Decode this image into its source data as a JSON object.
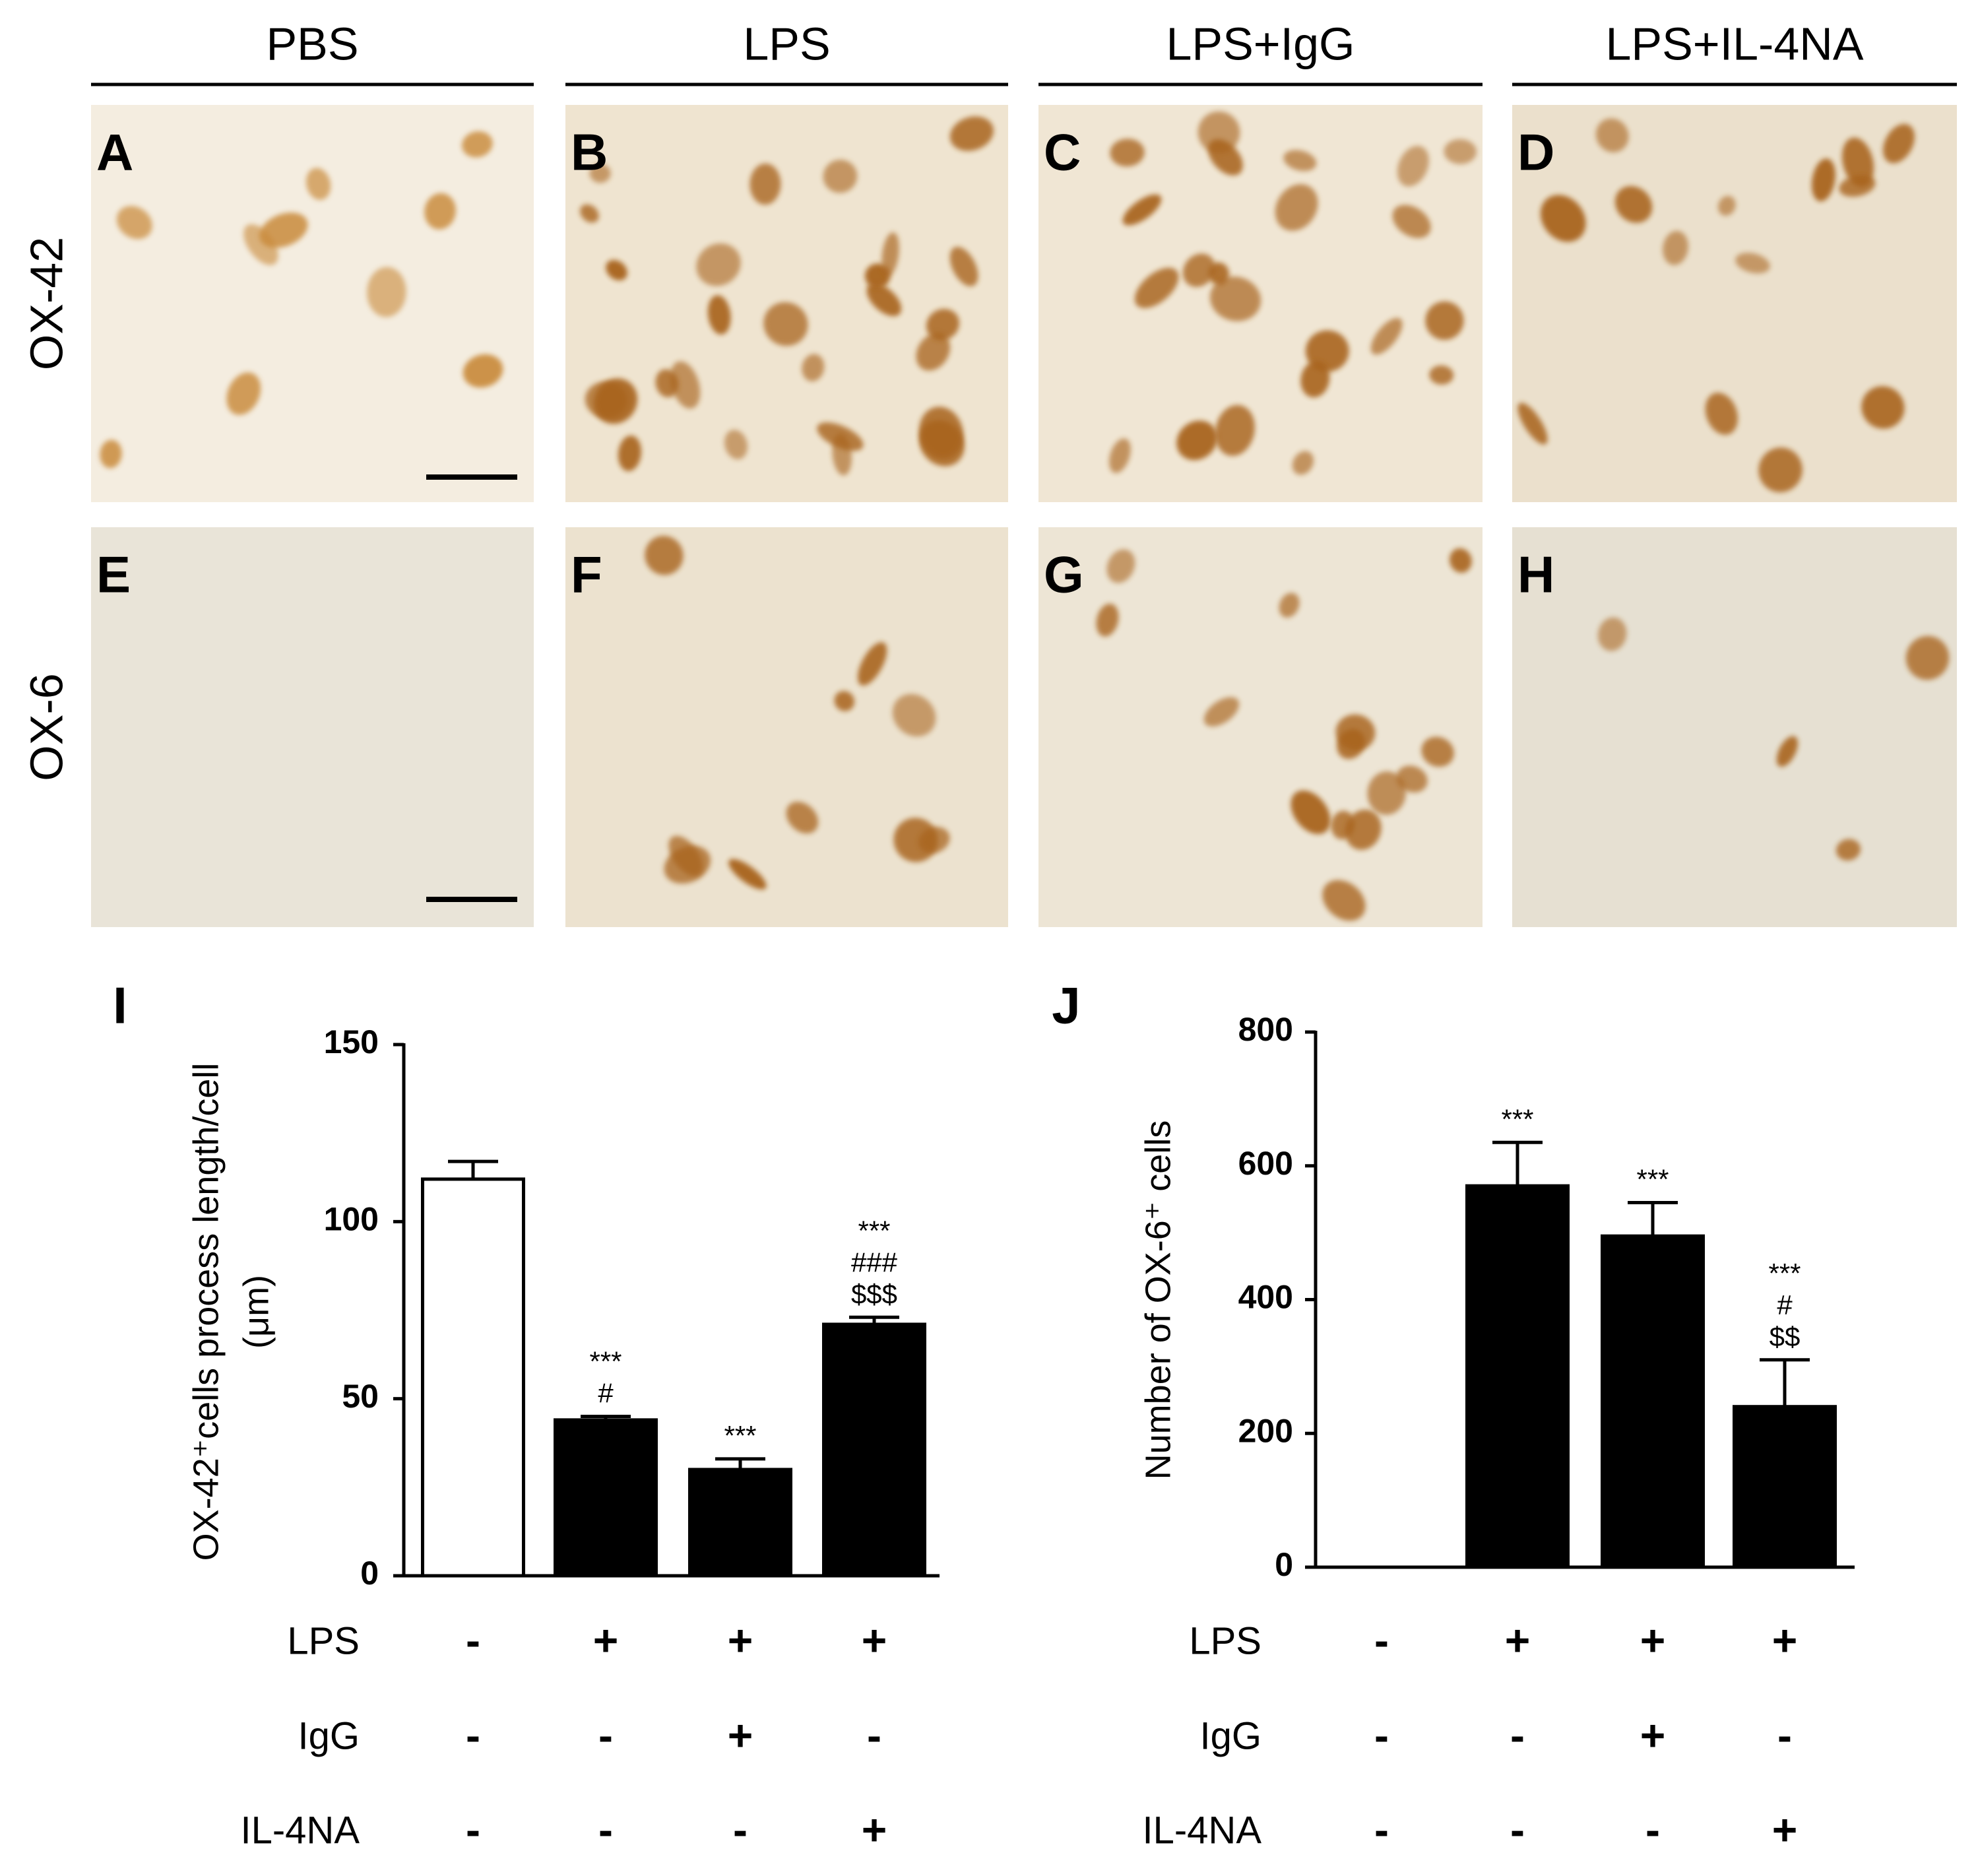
{
  "figure": {
    "columns": [
      "PBS",
      "LPS",
      "LPS+IgG",
      "LPS+IL-4NA"
    ],
    "rows": [
      "OX-42",
      "OX-6"
    ],
    "panel_letters": [
      "A",
      "B",
      "C",
      "D",
      "E",
      "F",
      "G",
      "H"
    ]
  },
  "chart_data": [
    {
      "type": "bar",
      "panel_letter": "I",
      "y_label": [
        "OX-42⁺cells process length/cell",
        "(μm)"
      ],
      "values": [
        112,
        44,
        30,
        71
      ],
      "errors": [
        5,
        1,
        3,
        2
      ],
      "colors": [
        "#ffffff",
        "#000000",
        "#000000",
        "#000000"
      ],
      "annotations": [
        null,
        [
          "***",
          "#"
        ],
        [
          "***"
        ],
        [
          "***",
          "###",
          "$$$"
        ]
      ],
      "ylim": [
        0,
        150
      ],
      "yticks": [
        0,
        50,
        100,
        150
      ],
      "treatments": [
        {
          "name": "LPS",
          "signs": [
            "-",
            "+",
            "+",
            "+"
          ]
        },
        {
          "name": "IgG",
          "signs": [
            "-",
            "-",
            "+",
            "-"
          ]
        },
        {
          "name": "IL-4NA",
          "signs": [
            "-",
            "-",
            "-",
            "+"
          ]
        }
      ]
    },
    {
      "type": "bar",
      "panel_letter": "J",
      "y_label": [
        "Number of OX-6⁺ cells"
      ],
      "values": [
        0,
        570,
        495,
        240
      ],
      "errors": [
        0,
        65,
        50,
        70
      ],
      "colors": [
        "#000000",
        "#000000",
        "#000000",
        "#000000"
      ],
      "annotations": [
        null,
        [
          "***"
        ],
        [
          "***"
        ],
        [
          "***",
          "#",
          "$$"
        ]
      ],
      "ylim": [
        0,
        800
      ],
      "yticks": [
        0,
        200,
        400,
        600,
        800
      ],
      "treatments": [
        {
          "name": "LPS",
          "signs": [
            "-",
            "+",
            "+",
            "+"
          ]
        },
        {
          "name": "IgG",
          "signs": [
            "-",
            "-",
            "+",
            "-"
          ]
        },
        {
          "name": "IL-4NA",
          "signs": [
            "-",
            "-",
            "-",
            "+"
          ]
        }
      ]
    }
  ]
}
